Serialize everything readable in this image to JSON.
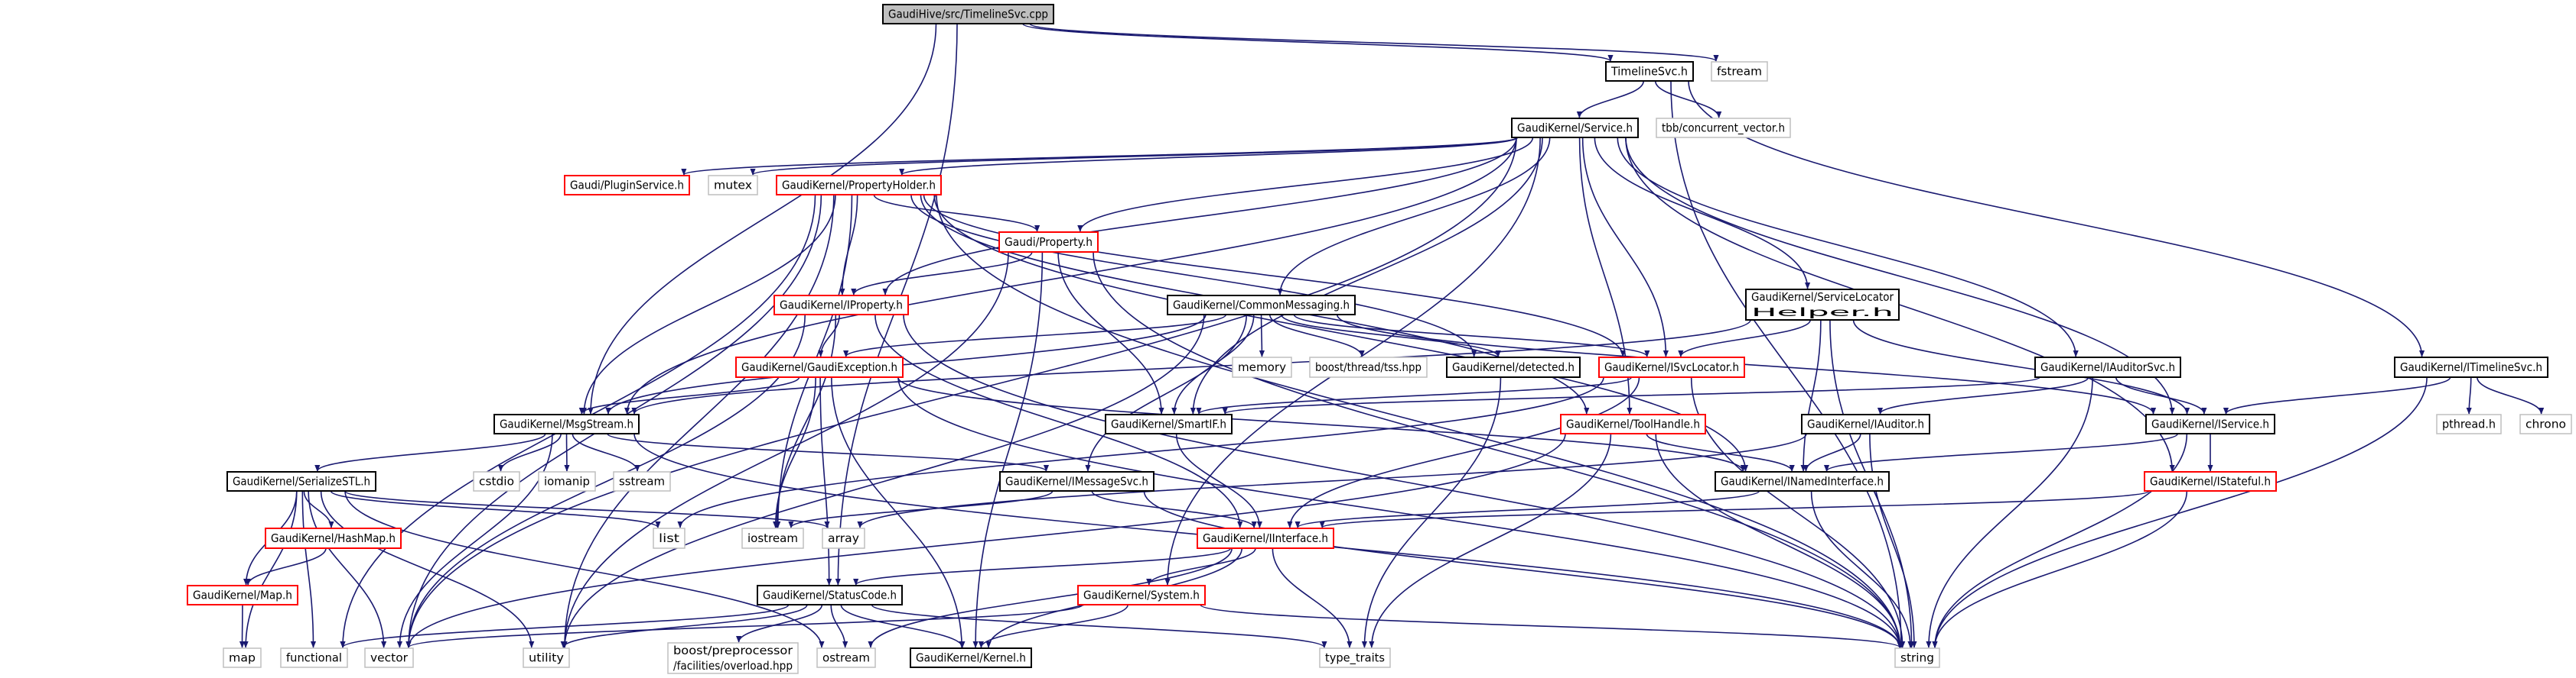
{
  "graph": {
    "type": "include-dependency-graph",
    "colors": {
      "edge": "#191970",
      "root_fill": "#bfbfbf",
      "normal_border": "#000000",
      "truncated_border": "#ff0000",
      "external_border": "#bfbfbf"
    },
    "nodes": [
      {
        "id": "cpp",
        "lines": [
          "GaudiHive/src/TimelineSvc.cpp"
        ],
        "style": "root"
      },
      {
        "id": "timelinesvc_h",
        "lines": [
          "TimelineSvc.h"
        ],
        "style": "normal"
      },
      {
        "id": "fstream",
        "lines": [
          "fstream"
        ],
        "style": "external"
      },
      {
        "id": "service_h",
        "lines": [
          "GaudiKernel/Service.h"
        ],
        "style": "normal"
      },
      {
        "id": "tbb",
        "lines": [
          "tbb/concurrent_vector.h"
        ],
        "style": "external"
      },
      {
        "id": "pluginservice",
        "lines": [
          "Gaudi/PluginService.h"
        ],
        "style": "red"
      },
      {
        "id": "mutex",
        "lines": [
          "mutex"
        ],
        "style": "external"
      },
      {
        "id": "propertyholder",
        "lines": [
          "GaudiKernel/PropertyHolder.h"
        ],
        "style": "red"
      },
      {
        "id": "property",
        "lines": [
          "Gaudi/Property.h"
        ],
        "style": "red"
      },
      {
        "id": "iproperty",
        "lines": [
          "GaudiKernel/IProperty.h"
        ],
        "style": "red"
      },
      {
        "id": "commonmessaging",
        "lines": [
          "GaudiKernel/CommonMessaging.h"
        ],
        "style": "normal"
      },
      {
        "id": "servicelocatorhelper",
        "lines": [
          "GaudiKernel/ServiceLocator",
          "Helper.h"
        ],
        "style": "normal"
      },
      {
        "id": "gaudiexception",
        "lines": [
          "GaudiKernel/GaudiException.h"
        ],
        "style": "red"
      },
      {
        "id": "memory",
        "lines": [
          "memory"
        ],
        "style": "external"
      },
      {
        "id": "tss",
        "lines": [
          "boost/thread/tss.hpp"
        ],
        "style": "external"
      },
      {
        "id": "detected",
        "lines": [
          "GaudiKernel/detected.h"
        ],
        "style": "normal"
      },
      {
        "id": "isvclocator",
        "lines": [
          "GaudiKernel/ISvcLocator.h"
        ],
        "style": "red"
      },
      {
        "id": "iauditorsvc",
        "lines": [
          "GaudiKernel/IAuditorSvc.h"
        ],
        "style": "normal"
      },
      {
        "id": "itimelinesvc",
        "lines": [
          "GaudiKernel/ITimelineSvc.h"
        ],
        "style": "normal"
      },
      {
        "id": "msgstream",
        "lines": [
          "GaudiKernel/MsgStream.h"
        ],
        "style": "normal"
      },
      {
        "id": "smartif",
        "lines": [
          "GaudiKernel/SmartIF.h"
        ],
        "style": "normal"
      },
      {
        "id": "toolhandle",
        "lines": [
          "GaudiKernel/ToolHandle.h"
        ],
        "style": "red"
      },
      {
        "id": "iauditor",
        "lines": [
          "GaudiKernel/IAuditor.h"
        ],
        "style": "normal"
      },
      {
        "id": "iservice",
        "lines": [
          "GaudiKernel/IService.h"
        ],
        "style": "normal"
      },
      {
        "id": "pthread",
        "lines": [
          "pthread.h"
        ],
        "style": "external"
      },
      {
        "id": "chrono",
        "lines": [
          "chrono"
        ],
        "style": "external"
      },
      {
        "id": "serializestl",
        "lines": [
          "GaudiKernel/SerializeSTL.h"
        ],
        "style": "normal"
      },
      {
        "id": "cstdio",
        "lines": [
          "cstdio"
        ],
        "style": "external"
      },
      {
        "id": "iomanip",
        "lines": [
          "iomanip"
        ],
        "style": "external"
      },
      {
        "id": "sstream",
        "lines": [
          "sstream"
        ],
        "style": "external"
      },
      {
        "id": "imessagesvc",
        "lines": [
          "GaudiKernel/IMessageSvc.h"
        ],
        "style": "normal"
      },
      {
        "id": "inamedinterface",
        "lines": [
          "GaudiKernel/INamedInterface.h"
        ],
        "style": "normal"
      },
      {
        "id": "istateful",
        "lines": [
          "GaudiKernel/IStateful.h"
        ],
        "style": "red"
      },
      {
        "id": "hashmap",
        "lines": [
          "GaudiKernel/HashMap.h"
        ],
        "style": "red"
      },
      {
        "id": "list",
        "lines": [
          "list"
        ],
        "style": "external"
      },
      {
        "id": "iostream",
        "lines": [
          "iostream"
        ],
        "style": "external"
      },
      {
        "id": "array",
        "lines": [
          "array"
        ],
        "style": "external"
      },
      {
        "id": "iinterface",
        "lines": [
          "GaudiKernel/IInterface.h"
        ],
        "style": "red"
      },
      {
        "id": "map_h",
        "lines": [
          "GaudiKernel/Map.h"
        ],
        "style": "red"
      },
      {
        "id": "statuscode",
        "lines": [
          "GaudiKernel/StatusCode.h"
        ],
        "style": "normal"
      },
      {
        "id": "system",
        "lines": [
          "GaudiKernel/System.h"
        ],
        "style": "red"
      },
      {
        "id": "map",
        "lines": [
          "map"
        ],
        "style": "external"
      },
      {
        "id": "functional",
        "lines": [
          "functional"
        ],
        "style": "external"
      },
      {
        "id": "vector",
        "lines": [
          "vector"
        ],
        "style": "external"
      },
      {
        "id": "utility",
        "lines": [
          "utility"
        ],
        "style": "external"
      },
      {
        "id": "overload",
        "lines": [
          "boost/preprocessor",
          "/facilities/overload.hpp"
        ],
        "style": "external"
      },
      {
        "id": "ostream",
        "lines": [
          "ostream"
        ],
        "style": "external"
      },
      {
        "id": "kernel",
        "lines": [
          "GaudiKernel/Kernel.h"
        ],
        "style": "normal"
      },
      {
        "id": "type_traits",
        "lines": [
          "type_traits"
        ],
        "style": "external"
      },
      {
        "id": "string",
        "lines": [
          "string"
        ],
        "style": "external"
      }
    ],
    "edges": [
      [
        "cpp",
        "timelinesvc_h"
      ],
      [
        "cpp",
        "fstream"
      ],
      [
        "cpp",
        "msgstream"
      ],
      [
        "cpp",
        "statuscode"
      ],
      [
        "timelinesvc_h",
        "service_h"
      ],
      [
        "timelinesvc_h",
        "tbb"
      ],
      [
        "timelinesvc_h",
        "itimelinesvc"
      ],
      [
        "timelinesvc_h",
        "string"
      ],
      [
        "service_h",
        "pluginservice"
      ],
      [
        "service_h",
        "mutex"
      ],
      [
        "service_h",
        "propertyholder"
      ],
      [
        "service_h",
        "property"
      ],
      [
        "service_h",
        "iproperty"
      ],
      [
        "service_h",
        "commonmessaging"
      ],
      [
        "service_h",
        "smartif"
      ],
      [
        "service_h",
        "isvclocator"
      ],
      [
        "service_h",
        "servicelocatorhelper"
      ],
      [
        "service_h",
        "iauditorsvc"
      ],
      [
        "service_h",
        "iservice"
      ],
      [
        "service_h",
        "istateful"
      ],
      [
        "service_h",
        "msgstream"
      ],
      [
        "service_h",
        "vector"
      ],
      [
        "service_h",
        "system"
      ],
      [
        "service_h",
        "toolhandle"
      ],
      [
        "propertyholder",
        "property"
      ],
      [
        "propertyholder",
        "iproperty"
      ],
      [
        "propertyholder",
        "msgstream"
      ],
      [
        "propertyholder",
        "iostream"
      ],
      [
        "propertyholder",
        "utility"
      ],
      [
        "propertyholder",
        "vector"
      ],
      [
        "propertyholder",
        "functional"
      ],
      [
        "propertyholder",
        "detected"
      ],
      [
        "propertyholder",
        "isvclocator"
      ],
      [
        "propertyholder",
        "toolhandle"
      ],
      [
        "propertyholder",
        "string"
      ],
      [
        "propertyholder",
        "inamedinterface"
      ],
      [
        "property",
        "iproperty"
      ],
      [
        "property",
        "smartif"
      ],
      [
        "property",
        "kernel"
      ],
      [
        "property",
        "string"
      ],
      [
        "property",
        "utility"
      ],
      [
        "iproperty",
        "gaudiexception"
      ],
      [
        "iproperty",
        "iinterface"
      ],
      [
        "iproperty",
        "iostream"
      ],
      [
        "iproperty",
        "string"
      ],
      [
        "iproperty",
        "vector"
      ],
      [
        "commonmessaging",
        "msgstream"
      ],
      [
        "commonmessaging",
        "gaudiexception"
      ],
      [
        "commonmessaging",
        "imessagesvc"
      ],
      [
        "commonmessaging",
        "smartif"
      ],
      [
        "commonmessaging",
        "memory"
      ],
      [
        "commonmessaging",
        "tss"
      ],
      [
        "commonmessaging",
        "detected"
      ],
      [
        "commonmessaging",
        "isvclocator"
      ],
      [
        "commonmessaging",
        "iservice"
      ],
      [
        "commonmessaging",
        "utility"
      ],
      [
        "servicelocatorhelper",
        "isvclocator"
      ],
      [
        "servicelocatorhelper",
        "iservice"
      ],
      [
        "servicelocatorhelper",
        "msgstream"
      ],
      [
        "servicelocatorhelper",
        "string"
      ],
      [
        "servicelocatorhelper",
        "inamedinterface"
      ],
      [
        "gaudiexception",
        "msgstream"
      ],
      [
        "gaudiexception",
        "statuscode"
      ],
      [
        "gaudiexception",
        "iostream"
      ],
      [
        "gaudiexception",
        "kernel"
      ],
      [
        "gaudiexception",
        "string"
      ],
      [
        "gaudiexception",
        "inamedinterface"
      ],
      [
        "detected",
        "type_traits"
      ],
      [
        "isvclocator",
        "smartif"
      ],
      [
        "isvclocator",
        "iinterface"
      ],
      [
        "isvclocator",
        "list"
      ],
      [
        "isvclocator",
        "string"
      ],
      [
        "iauditorsvc",
        "iservice"
      ],
      [
        "iauditorsvc",
        "iauditor"
      ],
      [
        "iauditorsvc",
        "string"
      ],
      [
        "iauditorsvc",
        "smartif"
      ],
      [
        "itimelinesvc",
        "iservice"
      ],
      [
        "itimelinesvc",
        "pthread"
      ],
      [
        "itimelinesvc",
        "chrono"
      ],
      [
        "itimelinesvc",
        "string"
      ],
      [
        "msgstream",
        "serializestl"
      ],
      [
        "msgstream",
        "cstdio"
      ],
      [
        "msgstream",
        "iomanip"
      ],
      [
        "msgstream",
        "sstream"
      ],
      [
        "msgstream",
        "imessagesvc"
      ],
      [
        "msgstream",
        "vector"
      ],
      [
        "msgstream",
        "string"
      ],
      [
        "smartif",
        "iinterface"
      ],
      [
        "toolhandle",
        "inamedinterface"
      ],
      [
        "toolhandle",
        "string"
      ],
      [
        "toolhandle",
        "type_traits"
      ],
      [
        "toolhandle",
        "vector"
      ],
      [
        "iauditor",
        "inamedinterface"
      ],
      [
        "iauditor",
        "string"
      ],
      [
        "iauditor",
        "array"
      ],
      [
        "iservice",
        "inamedinterface"
      ],
      [
        "iservice",
        "istateful"
      ],
      [
        "iservice",
        "string"
      ],
      [
        "serializestl",
        "hashmap"
      ],
      [
        "serializestl",
        "map_h"
      ],
      [
        "serializestl",
        "list"
      ],
      [
        "serializestl",
        "array"
      ],
      [
        "serializestl",
        "vector"
      ],
      [
        "serializestl",
        "utility"
      ],
      [
        "serializestl",
        "map"
      ],
      [
        "serializestl",
        "ostream"
      ],
      [
        "serializestl",
        "functional"
      ],
      [
        "imessagesvc",
        "iinterface"
      ],
      [
        "imessagesvc",
        "string"
      ],
      [
        "imessagesvc",
        "iostream"
      ],
      [
        "inamedinterface",
        "iinterface"
      ],
      [
        "inamedinterface",
        "string"
      ],
      [
        "istateful",
        "iinterface"
      ],
      [
        "istateful",
        "string"
      ],
      [
        "hashmap",
        "map_h"
      ],
      [
        "map_h",
        "map"
      ],
      [
        "iinterface",
        "statuscode"
      ],
      [
        "iinterface",
        "system"
      ],
      [
        "iinterface",
        "kernel"
      ],
      [
        "iinterface",
        "type_traits"
      ],
      [
        "iinterface",
        "ostream"
      ],
      [
        "system",
        "kernel"
      ],
      [
        "system",
        "string"
      ],
      [
        "system",
        "vector"
      ],
      [
        "statuscode",
        "overload"
      ],
      [
        "statuscode",
        "ostream"
      ],
      [
        "statuscode",
        "kernel"
      ],
      [
        "statuscode",
        "utility"
      ],
      [
        "statuscode",
        "functional"
      ],
      [
        "statuscode",
        "type_traits"
      ]
    ]
  }
}
